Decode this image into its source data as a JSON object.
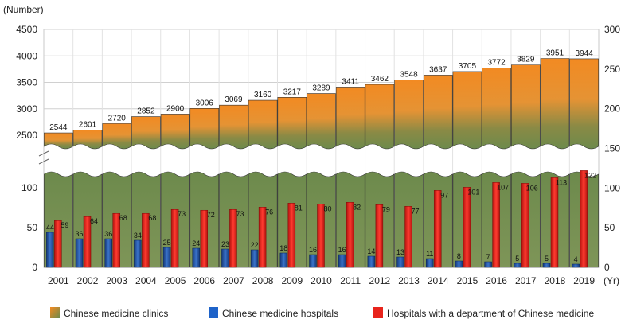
{
  "chart_data": {
    "type": "bar",
    "y_left_unit": "(Number)",
    "x_unit": "(Yr)",
    "categories": [
      "2001",
      "2002",
      "2003",
      "2004",
      "2005",
      "2006",
      "2007",
      "2008",
      "2009",
      "2010",
      "2011",
      "2012",
      "2013",
      "2014",
      "2015",
      "2016",
      "2017",
      "2018",
      "2019"
    ],
    "series": [
      {
        "name": "Chinese medicine clinics",
        "values": [
          2544,
          2601,
          2720,
          2852,
          2900,
          3006,
          3069,
          3160,
          3217,
          3289,
          3411,
          3462,
          3548,
          3637,
          3705,
          3772,
          3829,
          3951,
          3944
        ],
        "color_top": "#f08a24",
        "color_bottom": "#6e8a4a"
      },
      {
        "name": "Chinese medicine hospitals",
        "values": [
          44,
          36,
          36,
          34,
          25,
          24,
          23,
          22,
          18,
          16,
          16,
          14,
          13,
          11,
          8,
          7,
          5,
          5,
          4
        ],
        "color": "#1f4e9c"
      },
      {
        "name": "Hospitals with a department of Chinese medicine",
        "values": [
          59,
          64,
          68,
          68,
          73,
          72,
          73,
          76,
          81,
          80,
          82,
          79,
          77,
          97,
          101,
          107,
          106,
          113,
          122
        ],
        "color": "#e0231c"
      }
    ],
    "y_left_upper_ticks": [
      "2500",
      "3000",
      "3500",
      "4000",
      "4500"
    ],
    "y_left_lower_ticks": [
      "0",
      "50",
      "100"
    ],
    "y_right_ticks": [
      "0",
      "50",
      "100",
      "150",
      "200",
      "250",
      "300"
    ],
    "axis_break": true,
    "grid": true,
    "legend_position": "bottom"
  }
}
